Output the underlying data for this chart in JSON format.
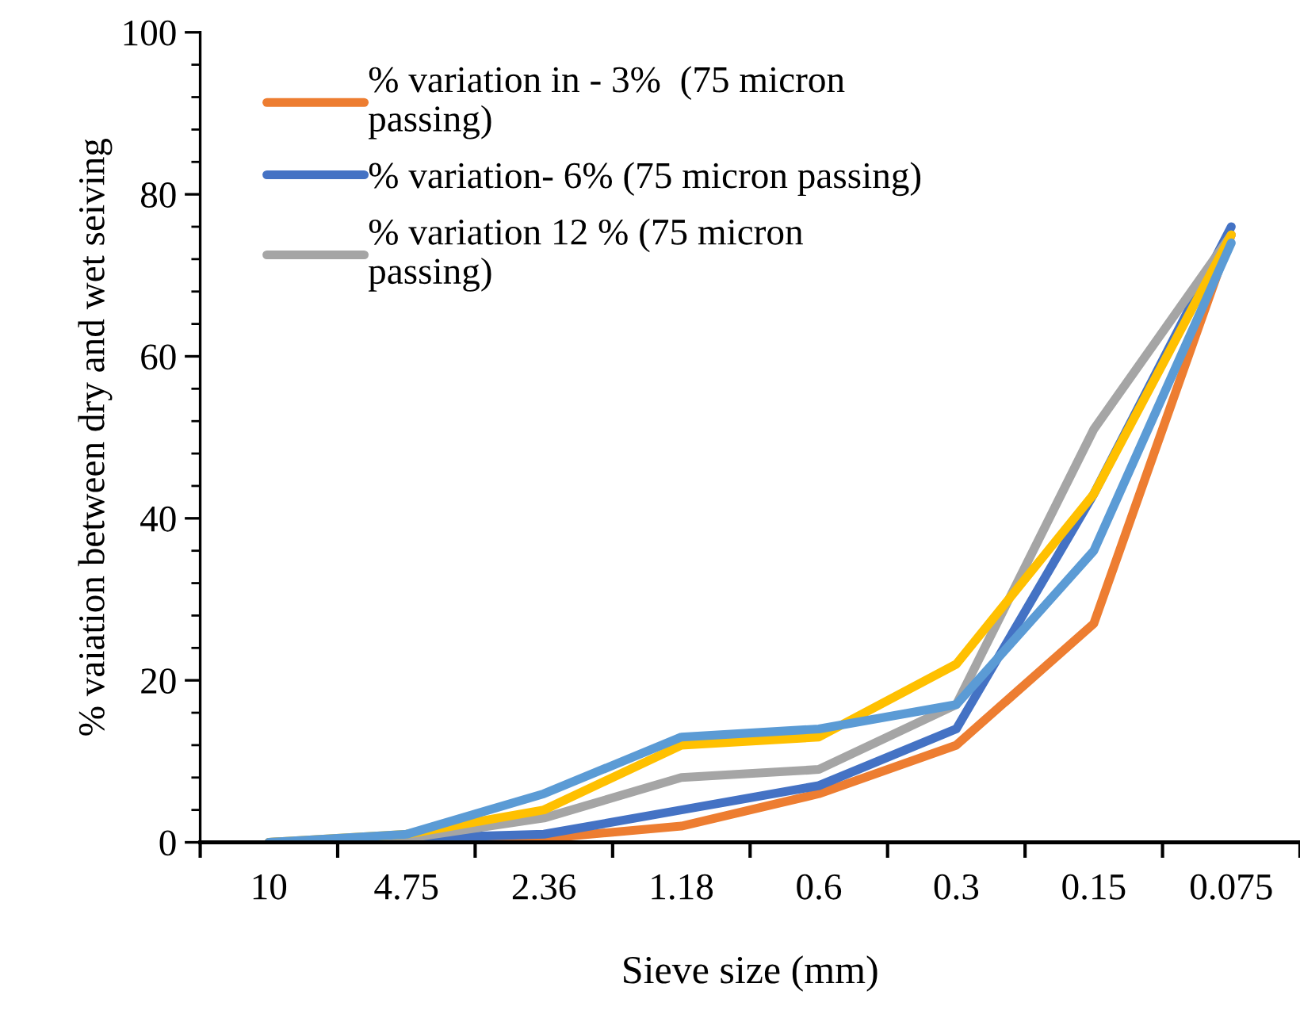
{
  "chart_data": {
    "type": "line",
    "xlabel": "Sieve size (mm)",
    "ylabel": "% vaiation between dry and wet seiving",
    "categories": [
      "10",
      "4.75",
      "2.36",
      "1.18",
      "0.6",
      "0.3",
      "0.15",
      "0.075"
    ],
    "series": [
      {
        "name": "% variation in - 3%  (75 micron\npassing)",
        "color": "#ed7d31",
        "values": [
          0,
          0,
          0.5,
          2,
          6,
          12,
          27,
          75
        ]
      },
      {
        "name": "% variation- 6% (75 micron passing)",
        "color": "#4472c4",
        "values": [
          0,
          0.5,
          1,
          4,
          7,
          14,
          43,
          76
        ]
      },
      {
        "name": "% variation 12 % (75 micron\npassing)",
        "color": "#a5a5a5",
        "values": [
          0,
          0.5,
          3,
          8,
          9,
          17,
          51,
          75
        ]
      },
      {
        "color": "#ffc000",
        "values": [
          0,
          1,
          4,
          12,
          13,
          22,
          43,
          75
        ]
      },
      {
        "color": "#5b9bd5",
        "values": [
          0,
          1,
          6,
          13,
          14,
          17,
          36,
          74
        ]
      }
    ],
    "ylim": [
      0,
      100
    ],
    "yticks": [
      0,
      20,
      40,
      60,
      80,
      100
    ],
    "grid": false,
    "legend": "top left",
    "marker": "none",
    "line_style": "solid"
  }
}
